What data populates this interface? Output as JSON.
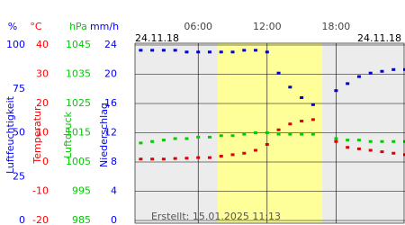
{
  "chart_data": {
    "type": "scatter",
    "date_start": "24.11.18",
    "date_end": "24.11.18",
    "created": "Erstellt: 15.01.2025 11:13",
    "xlim": [
      0.5,
      24
    ],
    "xticks": [
      {
        "value": 6,
        "label": "06:00"
      },
      {
        "value": 12,
        "label": "12:00"
      },
      {
        "value": 18,
        "label": "18:00"
      }
    ],
    "daylight": [
      7.7,
      16.8
    ],
    "axes": [
      {
        "unit": "%",
        "label": "Luftfeuchtigkeit",
        "color": "#0000ff",
        "ylim": [
          0,
          100
        ],
        "yticks": [
          0,
          25,
          50,
          75,
          100
        ]
      },
      {
        "unit": "°C",
        "label": "Temperatur",
        "color": "#ff0000",
        "ylim": [
          -20,
          40
        ],
        "yticks": [
          -20,
          -10,
          0,
          10,
          20,
          30,
          40
        ]
      },
      {
        "unit": "hPa",
        "label": "Luftdruck",
        "color": "#00cc00",
        "ylim": [
          985,
          1045
        ],
        "yticks": [
          985,
          995,
          1005,
          1015,
          1025,
          1035,
          1045
        ]
      },
      {
        "unit": "mm/h",
        "label": "Niederschlag",
        "color": "#0000ff",
        "ylim": [
          0,
          24
        ],
        "yticks": [
          0,
          4,
          8,
          12,
          16,
          20,
          24
        ]
      }
    ],
    "x": [
      1,
      2,
      3,
      4,
      5,
      6,
      7,
      8,
      9,
      10,
      11,
      12,
      13,
      14,
      15,
      16,
      17,
      18,
      19,
      20,
      21,
      22,
      23,
      24
    ],
    "series": [
      {
        "axis": 0,
        "color": "#0000cc",
        "values": [
          97,
          97,
          97,
          97,
          96,
          96,
          96,
          96,
          96,
          97,
          97,
          96,
          84,
          76,
          70,
          66,
          null,
          74,
          78,
          82,
          84,
          85,
          86,
          86
        ]
      },
      {
        "axis": 1,
        "color": "#dd0000",
        "values": [
          1,
          1,
          1,
          1.2,
          1.3,
          1.5,
          1.5,
          2,
          2.5,
          3,
          4,
          6,
          11,
          13,
          14,
          14.5,
          null,
          7,
          5,
          4.5,
          4,
          3.5,
          3,
          2.5
        ]
      },
      {
        "axis": 2,
        "color": "#00cc00",
        "values": [
          1011.5,
          1012,
          1012.5,
          1013,
          1013,
          1013.5,
          1013.5,
          1014,
          1014,
          1014.5,
          1015,
          1015,
          1014.5,
          1014.5,
          1014.5,
          1014.5,
          null,
          1013,
          1012.5,
          1012.5,
          1012,
          1012,
          1012,
          1012
        ]
      }
    ]
  }
}
